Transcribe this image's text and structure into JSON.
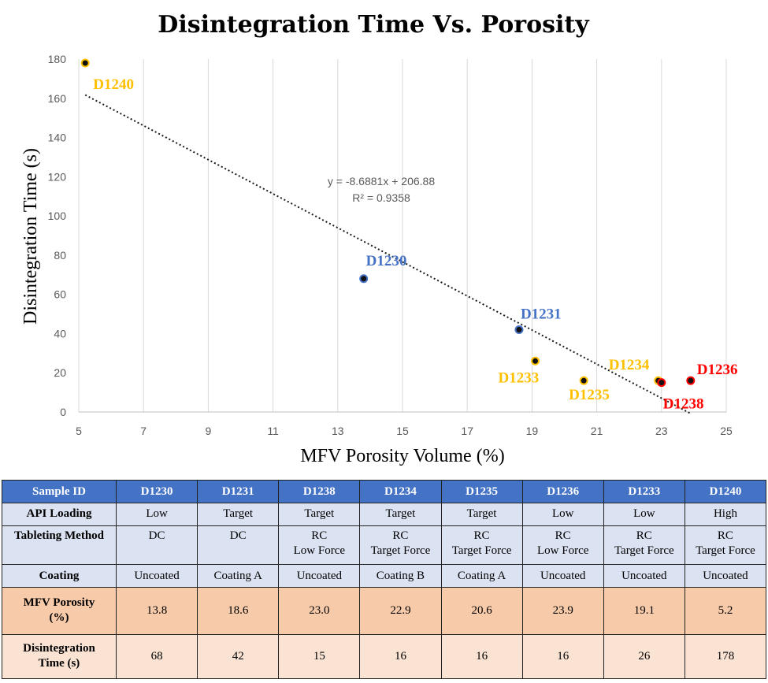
{
  "chart_data": {
    "type": "scatter",
    "title": "Disintegration Time Vs. Porosity",
    "xlabel": "MFV Porosity Volume (%)",
    "ylabel": "Disintegration Time (s)",
    "xlim": [
      5,
      25
    ],
    "ylim": [
      0,
      180
    ],
    "x_ticks": [
      "5",
      "7",
      "9",
      "11",
      "13",
      "15",
      "17",
      "19",
      "21",
      "23",
      "25"
    ],
    "y_ticks": [
      "0",
      "20",
      "40",
      "60",
      "80",
      "100",
      "120",
      "140",
      "160",
      "180"
    ],
    "grid": "vertical",
    "points": [
      {
        "label": "D1240",
        "x": 5.2,
        "y": 178,
        "color": "#ffc000"
      },
      {
        "label": "D1230",
        "x": 13.8,
        "y": 68,
        "color": "#4472c4"
      },
      {
        "label": "D1231",
        "x": 18.6,
        "y": 42,
        "color": "#4472c4"
      },
      {
        "label": "D1233",
        "x": 19.1,
        "y": 26,
        "color": "#ffc000"
      },
      {
        "label": "D1235",
        "x": 20.6,
        "y": 16,
        "color": "#ffc000"
      },
      {
        "label": "D1234",
        "x": 22.9,
        "y": 16,
        "color": "#ffc000"
      },
      {
        "label": "D1238",
        "x": 23.0,
        "y": 15,
        "color": "#ff0000"
      },
      {
        "label": "D1236",
        "x": 23.9,
        "y": 16,
        "color": "#ff0000"
      }
    ],
    "trendline": {
      "type": "linear",
      "slope": -8.6881,
      "intercept": 206.88,
      "x_range": [
        5.2,
        23.9
      ],
      "equation": "y = -8.6881x + 206.88",
      "r_squared": "R² = 0.9358"
    }
  },
  "table": {
    "header": [
      "Sample ID",
      "D1230",
      "D1231",
      "D1238",
      "D1234",
      "D1235",
      "D1236",
      "D1233",
      "D1240"
    ],
    "rows": [
      {
        "label": "API Loading",
        "cells": [
          "Low",
          "Target",
          "Target",
          "Target",
          "Target",
          "Low",
          "Low",
          "High"
        ]
      },
      {
        "label": "Tableting Method",
        "cells": [
          "DC",
          "DC",
          "RC\nLow Force",
          "RC\nTarget Force",
          "RC\nTarget Force",
          "RC\nLow Force",
          "RC\nTarget Force",
          "RC\nTarget Force"
        ]
      },
      {
        "label": "Coating",
        "cells": [
          "Uncoated",
          "Coating A",
          "Uncoated",
          "Coating B",
          "Coating A",
          "Uncoated",
          "Uncoated",
          "Uncoated"
        ]
      },
      {
        "label": "MFV Porosity\n(%)",
        "cells": [
          "13.8",
          "18.6",
          "23.0",
          "22.9",
          "20.6",
          "23.9",
          "19.1",
          "5.2"
        ]
      },
      {
        "label": "Disintegration\nTime (s)",
        "cells": [
          "68",
          "42",
          "15",
          "16",
          "16",
          "16",
          "26",
          "178"
        ]
      }
    ]
  }
}
